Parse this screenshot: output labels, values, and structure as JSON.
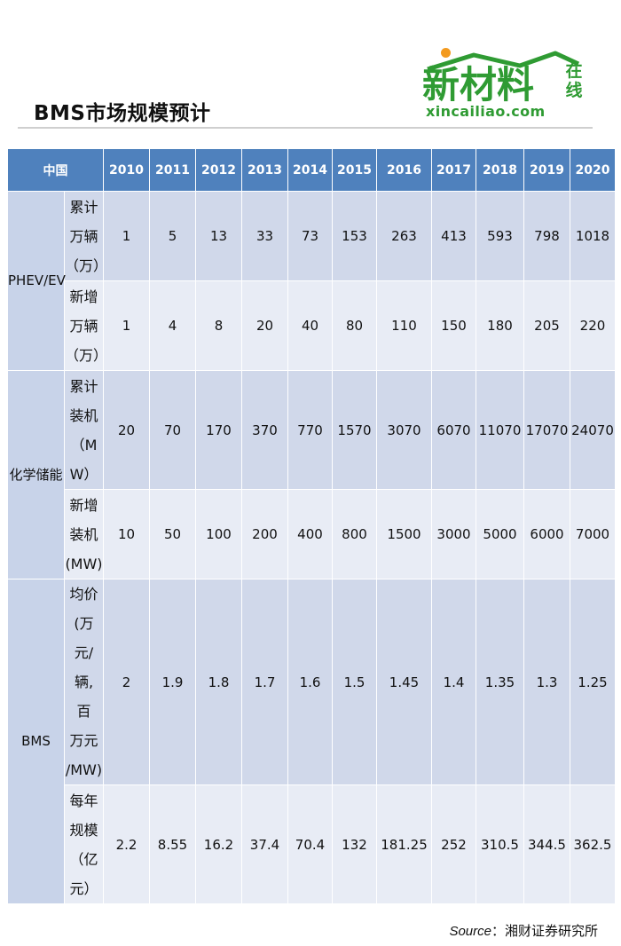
{
  "title": "BMS市场规模预计",
  "logo": {
    "main": "新材料",
    "side": "在线",
    "url": "xincailiao.com",
    "brand_color": "#2f9b33",
    "dot_color": "#f39a1f"
  },
  "table": {
    "corner": "中国",
    "years": [
      "2010",
      "2011",
      "2012",
      "2013",
      "2014",
      "2015",
      "2016",
      "2017",
      "2018",
      "2019",
      "2020"
    ],
    "groups": [
      {
        "category": "PHEV/EV",
        "rows": [
          {
            "metric": "累计万辆（万）",
            "values": [
              "1",
              "5",
              "13",
              "33",
              "73",
              "153",
              "263",
              "413",
              "593",
              "798",
              "1018"
            ]
          },
          {
            "metric": "新增万辆（万）",
            "values": [
              "1",
              "4",
              "8",
              "20",
              "40",
              "80",
              "110",
              "150",
              "180",
              "205",
              "220"
            ]
          }
        ]
      },
      {
        "category": "化学储能",
        "rows": [
          {
            "metric": "累计装机（MW）",
            "values": [
              "20",
              "70",
              "170",
              "370",
              "770",
              "1570",
              "3070",
              "6070",
              "11070",
              "17070",
              "24070"
            ]
          },
          {
            "metric": "新增装机(MW)",
            "values": [
              "10",
              "50",
              "100",
              "200",
              "400",
              "800",
              "1500",
              "3000",
              "5000",
              "6000",
              "7000"
            ]
          }
        ]
      },
      {
        "category": "BMS",
        "rows": [
          {
            "metric": "均价(万元/辆,百万元/MW)",
            "values": [
              "2",
              "1.9",
              "1.8",
              "1.7",
              "1.6",
              "1.5",
              "1.45",
              "1.4",
              "1.35",
              "1.3",
              "1.25"
            ]
          },
          {
            "metric": "每年规模（亿元）",
            "values": [
              "2.2",
              "8.55",
              "16.2",
              "37.4",
              "70.4",
              "132",
              "181.25",
              "252",
              "310.5",
              "344.5",
              "362.5"
            ]
          }
        ]
      }
    ]
  },
  "source": {
    "label": "Source",
    "text": "：湘财证券研究所"
  },
  "colors": {
    "header_bg": "#4f81bd",
    "row_dark": "#d0d8ea",
    "row_light": "#e8ecf5"
  }
}
